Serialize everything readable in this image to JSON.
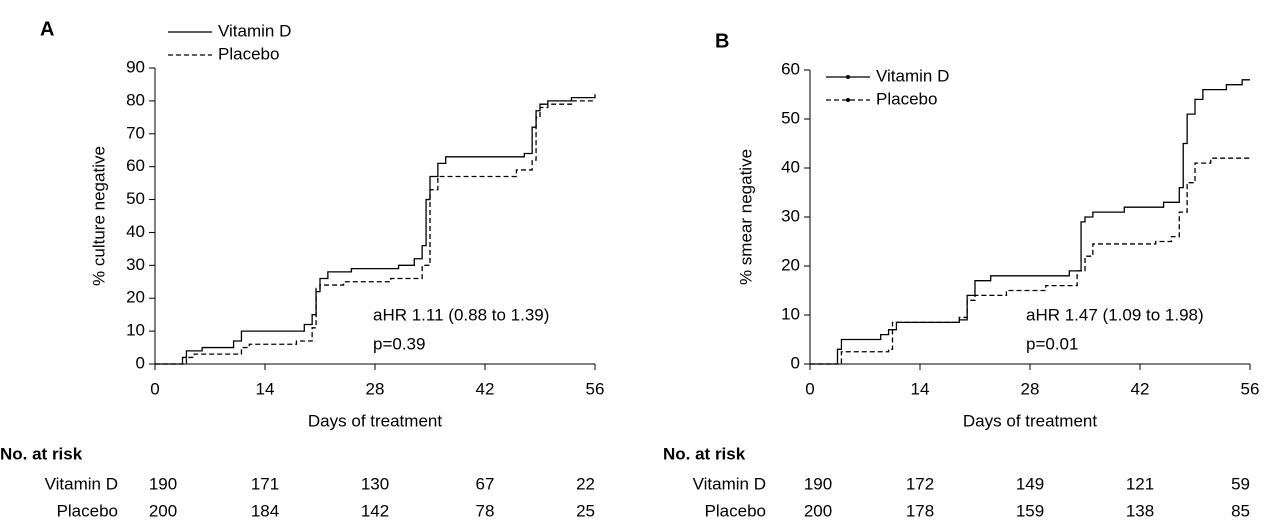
{
  "chart_data": [
    {
      "type": "step",
      "title": "A",
      "xlabel": "Days of treatment",
      "ylabel": "% culture negative",
      "xlim": [
        0,
        56
      ],
      "xticks": [
        0,
        14,
        28,
        42,
        56
      ],
      "ylim": [
        0,
        90
      ],
      "yticks": [
        0,
        10,
        20,
        30,
        40,
        50,
        60,
        70,
        80,
        90
      ],
      "annotations": [
        "aHR 1.11 (0.88 to 1.39)",
        "p=0.39"
      ],
      "series": [
        {
          "name": "Vitamin D",
          "color": "#000000",
          "dash": "solid",
          "x": [
            0,
            3,
            3.5,
            4,
            6,
            10,
            11,
            19,
            20,
            20.5,
            21,
            22,
            25,
            31,
            33,
            34,
            34.5,
            35,
            36,
            37,
            47,
            48,
            48.5,
            49,
            50,
            53,
            56
          ],
          "values": [
            0,
            0,
            2,
            4,
            5,
            7,
            10,
            12,
            15,
            22,
            26,
            28,
            29,
            30,
            32,
            36,
            50,
            57,
            61,
            63,
            64,
            72,
            77,
            79,
            80,
            81,
            82
          ]
        },
        {
          "name": "Placebo",
          "color": "#000000",
          "dash": "dashed",
          "x": [
            0,
            4,
            5,
            11,
            12,
            18,
            20,
            20.5,
            21,
            24,
            30,
            34,
            35,
            36,
            45,
            46,
            48,
            48.5,
            49,
            50,
            53,
            56
          ],
          "values": [
            0,
            2,
            3,
            5,
            6,
            7,
            11,
            23,
            24,
            25,
            26,
            30,
            53,
            57,
            57,
            59,
            62,
            75,
            78,
            79,
            80,
            80
          ]
        }
      ],
      "risk_table": {
        "title": "No. at risk",
        "rows": [
          {
            "name": "Vitamin D",
            "values": [
              190,
              171,
              130,
              67,
              22
            ]
          },
          {
            "name": "Placebo",
            "values": [
              200,
              184,
              142,
              78,
              25
            ]
          }
        ]
      }
    },
    {
      "type": "step",
      "title": "B",
      "xlabel": "Days of treatment",
      "ylabel": "% smear negative",
      "xlim": [
        0,
        56
      ],
      "xticks": [
        0,
        14,
        28,
        42,
        56
      ],
      "ylim": [
        0,
        60
      ],
      "yticks": [
        0,
        10,
        20,
        30,
        40,
        50,
        60
      ],
      "annotations": [
        "aHR 1.47 (1.09 to 1.98)",
        "p=0.01"
      ],
      "legend_marker": "dot",
      "series": [
        {
          "name": "Vitamin D",
          "color": "#000000",
          "dash": "solid",
          "x": [
            0,
            3.5,
            4,
            9,
            10,
            11,
            19,
            20,
            21,
            23,
            33,
            34.5,
            35,
            36,
            40,
            45,
            47,
            47.5,
            48,
            49,
            50,
            53,
            55,
            56
          ],
          "values": [
            0,
            3,
            5,
            6,
            7,
            8.5,
            9,
            14,
            17,
            18,
            19,
            29,
            30,
            31,
            32,
            33,
            36,
            45,
            51,
            54,
            56,
            57,
            58,
            58
          ]
        },
        {
          "name": "Placebo",
          "color": "#000000",
          "dash": "dashed",
          "x": [
            0,
            4,
            10,
            10.5,
            19,
            20,
            21,
            25,
            30,
            34,
            35,
            36,
            44,
            46,
            47,
            48,
            49,
            51,
            56
          ],
          "values": [
            0,
            2.5,
            3,
            8.5,
            9.5,
            13,
            14,
            15,
            16,
            19,
            22,
            24.5,
            25,
            26,
            31,
            37,
            41,
            42,
            42
          ]
        }
      ],
      "risk_table": {
        "title": "No. at risk",
        "rows": [
          {
            "name": "Vitamin D",
            "values": [
              190,
              172,
              149,
              121,
              59
            ]
          },
          {
            "name": "Placebo",
            "values": [
              200,
              178,
              159,
              138,
              85
            ]
          }
        ]
      }
    }
  ]
}
